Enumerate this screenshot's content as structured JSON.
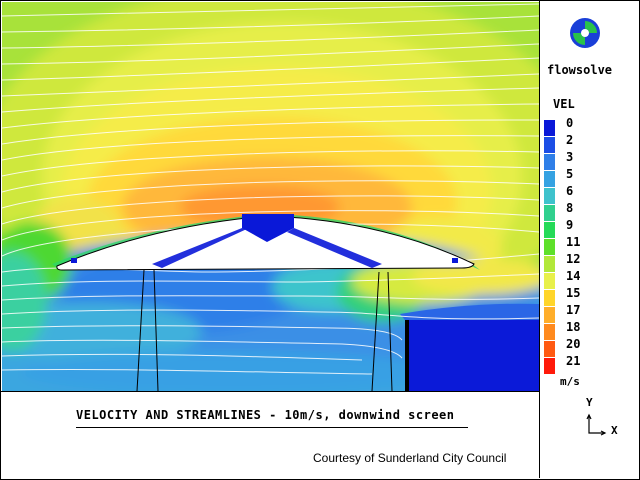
{
  "app": {
    "name": "flowsolve",
    "logo_icon": "flowsolve-logo-icon"
  },
  "plot": {
    "caption": "VELOCITY AND STREAMLINES - 10m/s, downwind screen",
    "credit": "Courtesy of Sunderland City Council"
  },
  "legend": {
    "title": "VEL",
    "unit": "m/s",
    "items": [
      {
        "label": "0",
        "color": "#0a18d8"
      },
      {
        "label": "2",
        "color": "#1c4ee6"
      },
      {
        "label": "3",
        "color": "#2f7fe8"
      },
      {
        "label": "5",
        "color": "#35a2e2"
      },
      {
        "label": "6",
        "color": "#3ec2cc"
      },
      {
        "label": "8",
        "color": "#30d08e"
      },
      {
        "label": "9",
        "color": "#25da58"
      },
      {
        "label": "11",
        "color": "#5ee02a"
      },
      {
        "label": "12",
        "color": "#b2e83a"
      },
      {
        "label": "14",
        "color": "#e8f04a"
      },
      {
        "label": "15",
        "color": "#ffd52a"
      },
      {
        "label": "17",
        "color": "#ffae2a"
      },
      {
        "label": "18",
        "color": "#ff8a1e"
      },
      {
        "label": "20",
        "color": "#ff5a12"
      },
      {
        "label": "21",
        "color": "#ff1a0a"
      }
    ]
  },
  "axes": {
    "y_label": "Y",
    "x_label": "X"
  }
}
